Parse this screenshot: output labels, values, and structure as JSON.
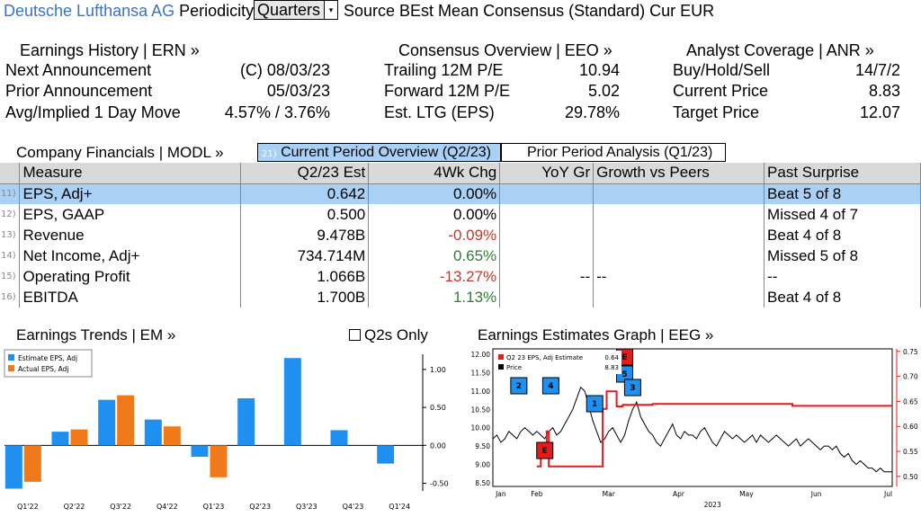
{
  "header": {
    "company": "Deutsche Lufthansa AG",
    "periodicity_label": "Periodicity",
    "periodicity_value": "Quarters",
    "rest": "Source BEst Mean Consensus (Standard) Cur EUR"
  },
  "earnings_history": {
    "title": "Earnings History | ERN »",
    "rows": [
      {
        "label": "Next Announcement",
        "value": "(C)  08/03/23"
      },
      {
        "label": "Prior Announcement",
        "value": "05/03/23"
      },
      {
        "label": "Avg/Implied 1 Day Move",
        "value": "4.57% / 3.76%"
      }
    ]
  },
  "consensus": {
    "title": "Consensus Overview | EEO »",
    "rows": [
      {
        "label": "Trailing 12M P/E",
        "value": "10.94"
      },
      {
        "label": "Forward 12M P/E",
        "value": "5.02"
      },
      {
        "label": "Est. LTG (EPS)",
        "value": "29.78%"
      }
    ]
  },
  "analyst": {
    "title": "Analyst Coverage | ANR »",
    "rows": [
      {
        "label": "Buy/Hold/Sell",
        "value": "14/7/2"
      },
      {
        "label": "Current Price",
        "value": "8.83"
      },
      {
        "label": "Target Price",
        "value": "12.07"
      }
    ]
  },
  "financials": {
    "title": "Company Financials | MODL »",
    "tab_current_num": "21)",
    "tab_current": "Current Period Overview (Q2/23)",
    "tab_prior": "Prior Period Analysis (Q1/23)",
    "columns": [
      "Measure",
      "Q2/23 Est",
      "4Wk Chg",
      "YoY Gr",
      "Growth vs Peers",
      "Past Surprise"
    ],
    "rows": [
      {
        "num": "11)",
        "measure": "EPS, Adj+",
        "est": "0.642",
        "chg": "0.00%",
        "chg_sign": "zero",
        "yoy": "",
        "peers": "",
        "surprise": "Beat 5 of 8"
      },
      {
        "num": "12)",
        "measure": "EPS, GAAP",
        "est": "0.500",
        "chg": "0.00%",
        "chg_sign": "zero",
        "yoy": "",
        "peers": "",
        "surprise": "Missed 4 of 7"
      },
      {
        "num": "13)",
        "measure": "Revenue",
        "est": "9.478B",
        "chg": "-0.09%",
        "chg_sign": "neg",
        "yoy": "",
        "peers": "",
        "surprise": "Beat 4 of 8"
      },
      {
        "num": "14)",
        "measure": "Net Income, Adj+",
        "est": "734.714M",
        "chg": "0.65%",
        "chg_sign": "pos",
        "yoy": "",
        "peers": "",
        "surprise": "Missed 5 of 8"
      },
      {
        "num": "15)",
        "measure": "Operating Profit",
        "est": "1.066B",
        "chg": "-13.27%",
        "chg_sign": "neg",
        "yoy": "--",
        "peers": "--",
        "surprise": "--"
      },
      {
        "num": "16)",
        "measure": "EBITDA",
        "est": "1.700B",
        "chg": "1.13%",
        "chg_sign": "pos",
        "yoy": "",
        "peers": "",
        "surprise": "Beat 4 of 8"
      }
    ]
  },
  "earnings_trends": {
    "title": "Earnings Trends | EM »",
    "checkbox_label": "Q2s Only"
  },
  "earnings_graph": {
    "title": "Earnings Estimates Graph | EEG »"
  },
  "chart_data": [
    {
      "type": "bar",
      "categories": [
        "Q1'22",
        "Q2'22",
        "Q3'22",
        "Q4'22",
        "Q1'23",
        "Q2'23",
        "Q3'23",
        "Q4'23",
        "Q1'24"
      ],
      "series": [
        {
          "name": "Estimate EPS, Adj",
          "color": "#1f8ff0",
          "values": [
            -0.57,
            0.18,
            0.6,
            0.34,
            -0.15,
            0.62,
            1.15,
            0.2,
            -0.24
          ]
        },
        {
          "name": "Actual EPS, Adj",
          "color": "#f07a1a",
          "values": [
            -0.48,
            0.21,
            0.66,
            0.25,
            -0.42,
            null,
            null,
            null,
            null
          ]
        }
      ],
      "ylim": [
        -0.6,
        1.2
      ],
      "yticks": [
        -0.5,
        0.0,
        0.5,
        1.0
      ],
      "ytick_labels": [
        "-0.50",
        "0.00",
        "0.50",
        "1.00"
      ],
      "legend_position": "top-left"
    },
    {
      "type": "line",
      "x_labels": [
        "Jan",
        "Feb",
        "Mar",
        "Apr",
        "May",
        "Jun",
        "Jul"
      ],
      "x_year": "2023",
      "left_axis": {
        "ticks": [
          8.5,
          9.0,
          9.5,
          10.0,
          10.5,
          11.0,
          11.5,
          12.0
        ],
        "labels": [
          "8.50",
          "9.00",
          "9.50",
          "10.00",
          "10.50",
          "11.00",
          "11.50",
          "12.00"
        ],
        "ylim": [
          8.4,
          12.15
        ]
      },
      "right_axis": {
        "ticks": [
          0.5,
          0.55,
          0.6,
          0.65,
          0.7,
          0.75
        ],
        "labels": [
          "0.50",
          "0.55",
          "0.60",
          "0.65",
          "0.70",
          "0.75"
        ],
        "ylim": [
          0.48,
          0.755
        ]
      },
      "legend": [
        {
          "label": "Q2 23 EPS, Adj Estimate",
          "value": "0.64",
          "color": "#e31b1b"
        },
        {
          "label": "Price",
          "value": "8.83",
          "color": "#000000"
        }
      ],
      "series": [
        {
          "name": "Price",
          "axis": "left",
          "color": "#000000",
          "x": [
            0,
            2,
            4,
            6,
            8,
            10,
            12,
            14,
            16,
            18,
            20,
            22,
            24,
            26,
            28,
            30,
            32,
            34,
            36,
            38,
            40,
            42,
            44,
            46,
            48,
            50,
            52,
            54,
            56,
            58,
            60,
            62,
            64,
            66,
            68,
            70,
            72,
            74,
            76,
            78,
            80,
            82,
            84,
            86,
            88,
            90,
            92,
            94,
            96,
            98,
            100,
            102,
            104,
            106,
            108,
            110,
            112,
            114,
            116,
            118,
            120,
            122,
            124,
            126,
            128,
            130,
            132,
            134,
            136,
            138,
            140,
            142,
            144,
            146,
            148,
            150,
            152,
            154,
            156,
            158,
            160,
            162,
            164,
            166,
            168,
            170,
            172,
            174,
            176,
            178,
            180,
            182,
            184,
            186,
            188,
            190,
            192,
            194,
            196,
            198,
            200
          ],
          "y": [
            9.7,
            9.8,
            9.6,
            9.7,
            9.9,
            9.8,
            9.7,
            9.9,
            10.0,
            9.9,
            9.8,
            9.9,
            9.8,
            9.7,
            9.9,
            10.0,
            9.8,
            9.9,
            10.1,
            10.3,
            10.5,
            10.8,
            11.1,
            11.0,
            10.6,
            10.2,
            9.9,
            9.6,
            9.7,
            9.9,
            10.0,
            9.8,
            9.6,
            9.8,
            10.2,
            10.5,
            10.7,
            10.3,
            10.1,
            9.9,
            9.8,
            9.6,
            9.5,
            9.7,
            9.9,
            10.1,
            9.8,
            9.7,
            9.9,
            9.8,
            9.8,
            9.7,
            9.9,
            10.0,
            9.8,
            9.6,
            9.5,
            9.7,
            9.9,
            9.8,
            9.7,
            9.8,
            9.7,
            9.6,
            9.7,
            9.8,
            9.6,
            9.8,
            9.7,
            9.6,
            9.7,
            9.8,
            9.7,
            9.6,
            9.5,
            9.6,
            9.7,
            9.5,
            9.6,
            9.7,
            9.6,
            9.5,
            9.4,
            9.5,
            9.5,
            9.4,
            9.5,
            9.3,
            9.2,
            9.3,
            9.1,
            9.0,
            9.1,
            9.0,
            8.9,
            8.9,
            8.8,
            8.9,
            8.8,
            8.8,
            8.8
          ]
        },
        {
          "name": "Q2 23 EPS, Adj Estimate",
          "axis": "right",
          "color": "#e31b1b",
          "x": [
            22,
            24,
            24,
            27,
            27,
            28,
            28,
            50,
            50,
            55,
            55,
            57,
            57,
            62,
            62,
            65,
            65,
            80,
            80,
            120,
            120,
            150,
            150,
            200
          ],
          "y": [
            0.52,
            0.52,
            0.54,
            0.54,
            0.59,
            0.59,
            0.52,
            0.52,
            0.52,
            0.52,
            0.635,
            0.635,
            0.67,
            0.67,
            0.64,
            0.64,
            0.643,
            0.643,
            0.645,
            0.645,
            0.645,
            0.645,
            0.641,
            0.641
          ]
        }
      ],
      "markers": [
        {
          "label": "2",
          "type": "announcement",
          "x": 13
        },
        {
          "label": "E",
          "type": "estimate",
          "x": 26
        },
        {
          "label": "4",
          "type": "announcement",
          "x": 29
        },
        {
          "label": "1",
          "type": "announcement",
          "x": 51
        },
        {
          "label": "E",
          "type": "estimate",
          "x": 66
        },
        {
          "label": "5",
          "type": "announcement",
          "x": 66
        },
        {
          "label": "3",
          "type": "announcement",
          "x": 70
        }
      ]
    }
  ]
}
